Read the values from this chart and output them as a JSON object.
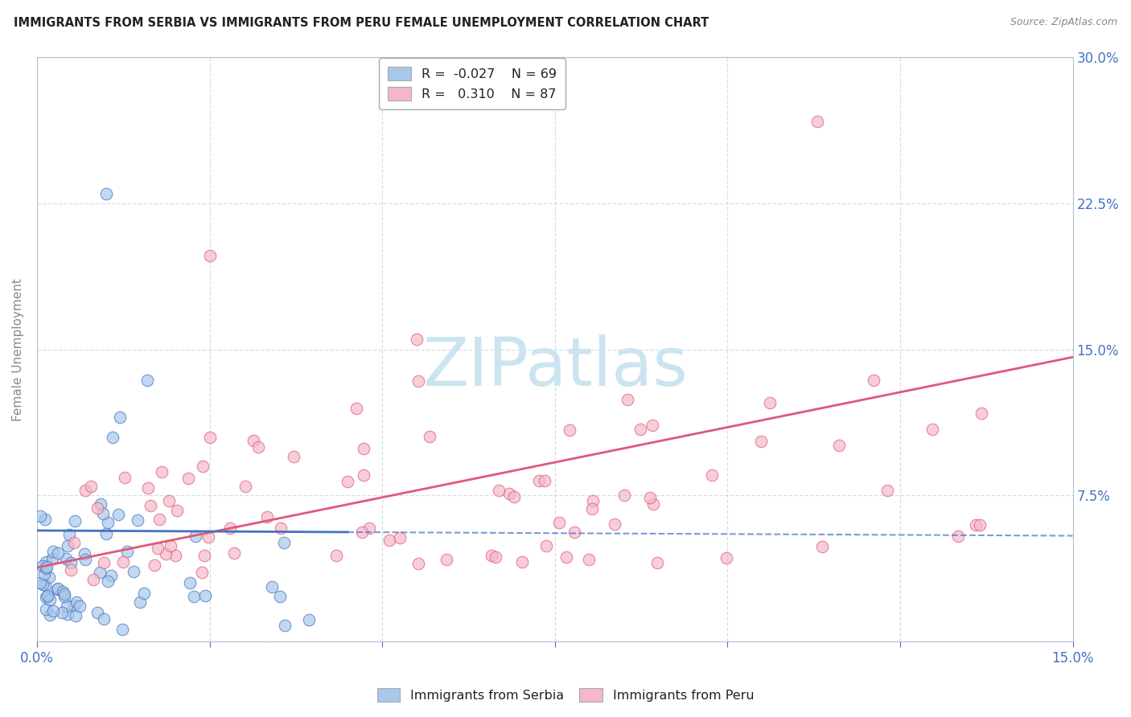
{
  "title": "IMMIGRANTS FROM SERBIA VS IMMIGRANTS FROM PERU FEMALE UNEMPLOYMENT CORRELATION CHART",
  "source": "Source: ZipAtlas.com",
  "ylabel": "Female Unemployment",
  "serbia_R": -0.027,
  "serbia_N": 69,
  "peru_R": 0.31,
  "peru_N": 87,
  "serbia_color": "#a8c8e8",
  "peru_color": "#f4b8c8",
  "serbia_line_color": "#4472c4",
  "peru_line_color": "#e05878",
  "watermark_text": "ZIPatlas",
  "watermark_color": "#cce4f0",
  "legend_label_serbia": "Immigrants from Serbia",
  "legend_label_peru": "Immigrants from Peru",
  "xlim": [
    0.0,
    0.15
  ],
  "ylim": [
    0.0,
    0.3
  ],
  "x_ticks": [
    0.0,
    0.025,
    0.05,
    0.075,
    0.1,
    0.125,
    0.15
  ],
  "y_ticks": [
    0.0,
    0.075,
    0.15,
    0.225,
    0.3
  ],
  "y_tick_labels": [
    "",
    "7.5%",
    "15.0%",
    "22.5%",
    "30.0%"
  ],
  "serbia_intercept": 0.055,
  "serbia_slope": -0.15,
  "peru_intercept": 0.038,
  "peru_slope": 0.72
}
